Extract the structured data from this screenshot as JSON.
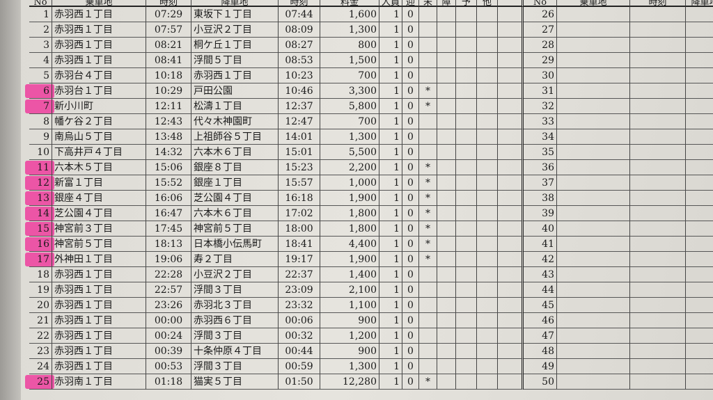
{
  "header": {
    "left": [
      "No",
      "乗車地",
      "時刻",
      "降車地",
      "時刻",
      "料金",
      "人員",
      "迎",
      "未",
      "障",
      "予",
      "他"
    ],
    "right": [
      "No",
      "乗車地",
      "時刻",
      "降車地"
    ]
  },
  "rows": [
    [
      "1",
      "赤羽西１丁目",
      "07:29",
      "東坂下１丁目",
      "07:44",
      "1,600",
      "1",
      "0"
    ],
    [
      "2",
      "赤羽西１丁目",
      "07:57",
      "小豆沢２丁目",
      "08:09",
      "1,300",
      "1",
      "0"
    ],
    [
      "3",
      "赤羽西１丁目",
      "08:21",
      "桐ケ丘１丁目",
      "08:27",
      "800",
      "1",
      "0"
    ],
    [
      "4",
      "赤羽西１丁目",
      "08:41",
      "浮間５丁目",
      "08:53",
      "1,500",
      "1",
      "0"
    ],
    [
      "5",
      "赤羽台４丁目",
      "10:18",
      "赤羽西１丁目",
      "10:23",
      "700",
      "1",
      "0"
    ],
    [
      "6",
      "赤羽台１丁目",
      "10:29",
      "戸田公園",
      "10:46",
      "3,300",
      "1",
      "0",
      "*"
    ],
    [
      "7",
      "新小川町",
      "12:11",
      "松濤１丁目",
      "12:37",
      "5,800",
      "1",
      "0",
      "*"
    ],
    [
      "8",
      "幡ケ谷２丁目",
      "12:43",
      "代々木神園町",
      "12:47",
      "700",
      "1",
      "0"
    ],
    [
      "9",
      "南烏山５丁目",
      "13:48",
      "上祖師谷５丁目",
      "14:01",
      "1,300",
      "1",
      "0"
    ],
    [
      "10",
      "下高井戸４丁目",
      "14:32",
      "六本木６丁目",
      "15:01",
      "5,500",
      "1",
      "0"
    ],
    [
      "11",
      "六本木５丁目",
      "15:06",
      "銀座８丁目",
      "15:23",
      "2,200",
      "1",
      "0",
      "*"
    ],
    [
      "12",
      "新富１丁目",
      "15:52",
      "銀座１丁目",
      "15:57",
      "1,000",
      "1",
      "0",
      "*"
    ],
    [
      "13",
      "銀座４丁目",
      "16:06",
      "芝公園４丁目",
      "16:18",
      "1,900",
      "1",
      "0",
      "*"
    ],
    [
      "14",
      "芝公園４丁目",
      "16:47",
      "六本木６丁目",
      "17:02",
      "1,800",
      "1",
      "0",
      "*"
    ],
    [
      "15",
      "神宮前３丁目",
      "17:45",
      "神宮前５丁目",
      "18:00",
      "1,800",
      "1",
      "0",
      "*"
    ],
    [
      "16",
      "神宮前５丁目",
      "18:13",
      "日本橋小伝馬町",
      "18:41",
      "4,400",
      "1",
      "0",
      "*"
    ],
    [
      "17",
      "外神田１丁目",
      "19:06",
      "寿２丁目",
      "19:17",
      "1,900",
      "1",
      "0",
      "*"
    ],
    [
      "18",
      "赤羽西１丁目",
      "22:28",
      "小豆沢２丁目",
      "22:37",
      "1,400",
      "1",
      "0"
    ],
    [
      "19",
      "赤羽西１丁目",
      "22:57",
      "浮間３丁目",
      "23:09",
      "2,100",
      "1",
      "0"
    ],
    [
      "20",
      "赤羽西１丁目",
      "23:26",
      "赤羽北３丁目",
      "23:32",
      "1,100",
      "1",
      "0"
    ],
    [
      "21",
      "赤羽西１丁目",
      "00:00",
      "赤羽西６丁目",
      "00:06",
      "900",
      "1",
      "0"
    ],
    [
      "22",
      "赤羽西１丁目",
      "00:24",
      "浮間３丁目",
      "00:32",
      "1,200",
      "1",
      "0"
    ],
    [
      "23",
      "赤羽西１丁目",
      "00:39",
      "十条仲原４丁目",
      "00:44",
      "900",
      "1",
      "0"
    ],
    [
      "24",
      "赤羽西１丁目",
      "00:53",
      "浮間３丁目",
      "00:59",
      "1,300",
      "1",
      "0"
    ],
    [
      "25",
      "赤羽南１丁目",
      "01:18",
      "猫実５丁目",
      "01:50",
      "12,280",
      "1",
      "0",
      "*"
    ]
  ],
  "right_numbers": [
    "26",
    "27",
    "28",
    "29",
    "30",
    "31",
    "32",
    "33",
    "34",
    "35",
    "36",
    "37",
    "38",
    "39",
    "40",
    "41",
    "42",
    "43",
    "44",
    "45",
    "46",
    "47",
    "48",
    "49",
    "50"
  ]
}
